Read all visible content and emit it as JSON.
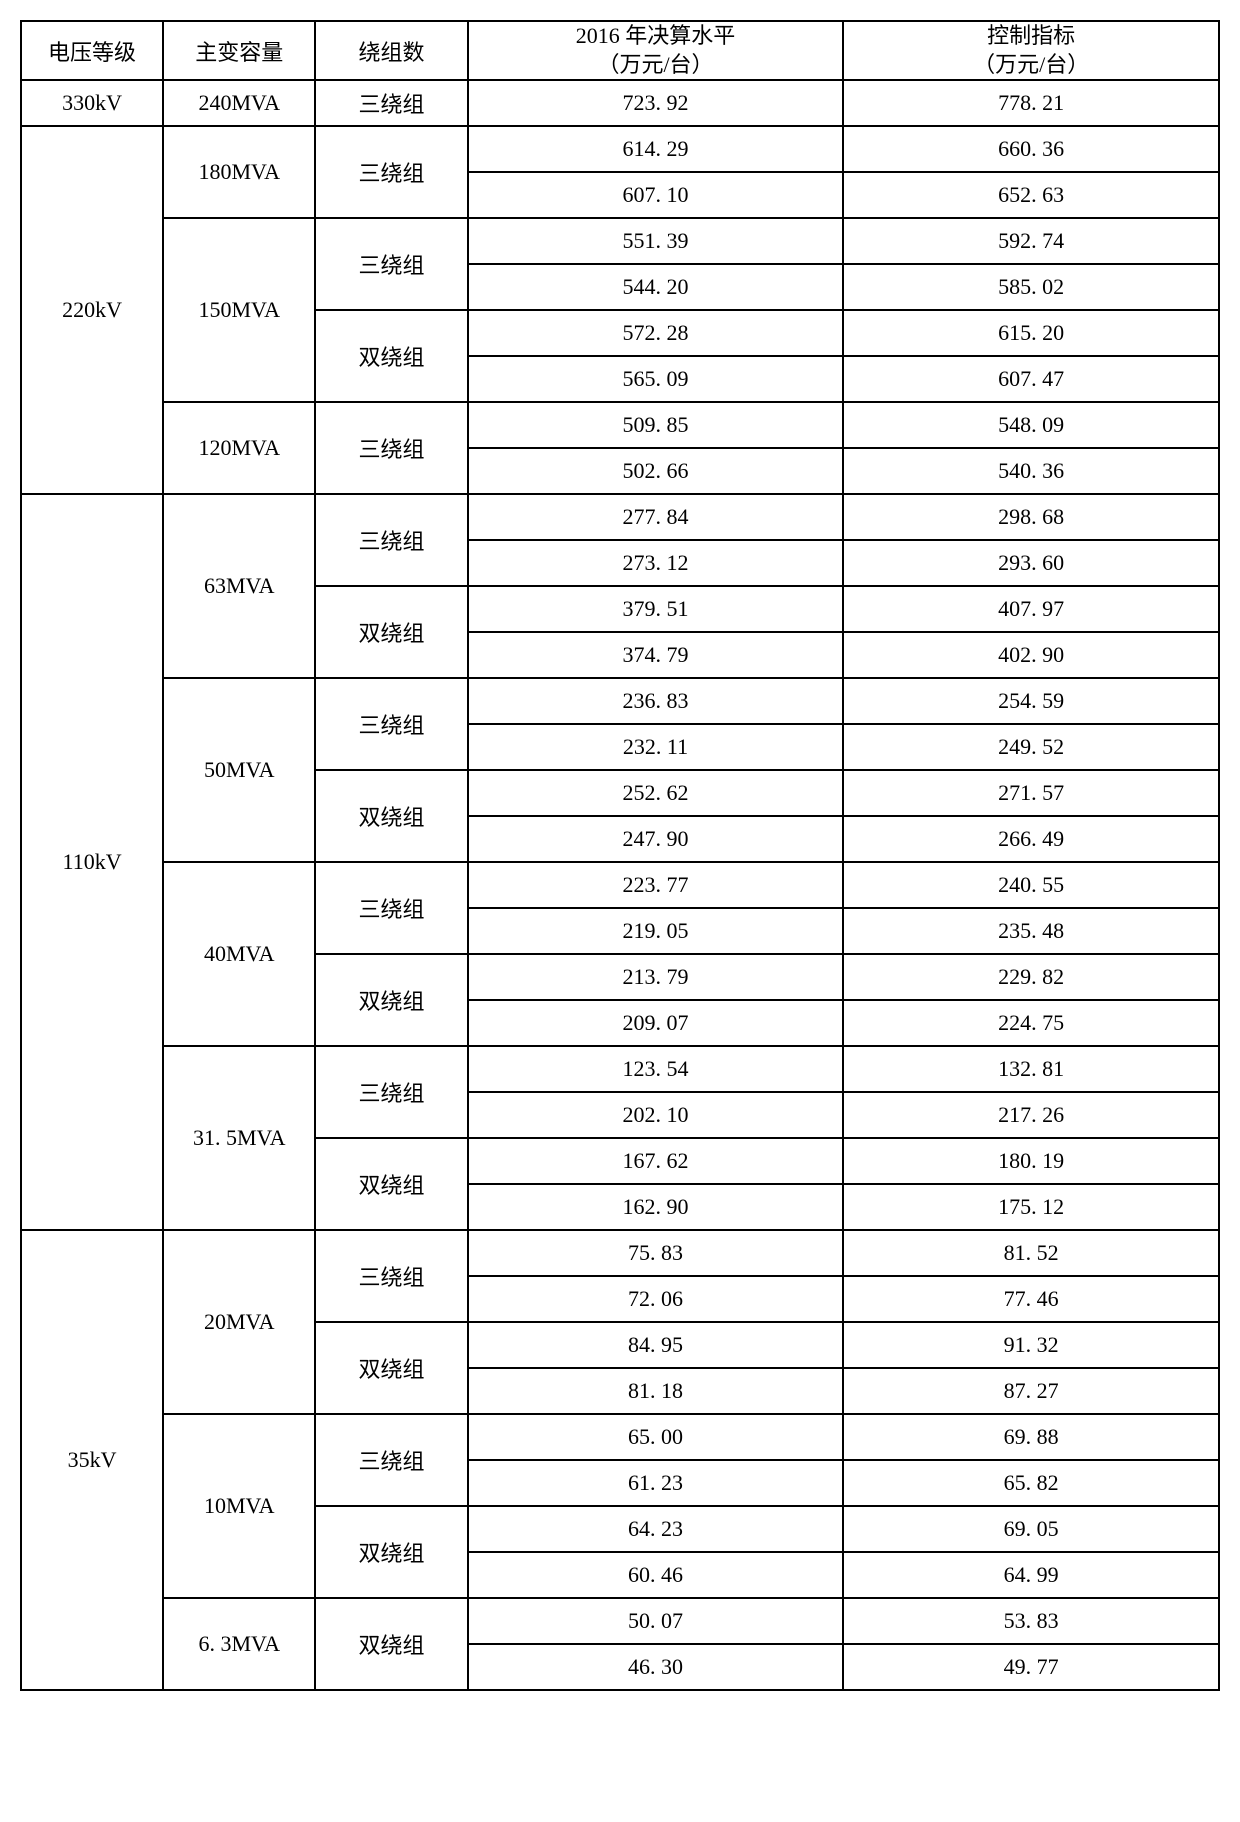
{
  "table": {
    "columns": [
      {
        "label": "电压等级"
      },
      {
        "label": "主变容量"
      },
      {
        "label": "绕组数"
      },
      {
        "line1": "2016 年决算水平",
        "line2": "（万元/台）"
      },
      {
        "line1": "控制指标",
        "line2": "（万元/台）"
      }
    ],
    "rows": [
      {
        "voltage": "330kV",
        "v_span": 1,
        "capacity": "240MVA",
        "c_span": 1,
        "winding": "三绕组",
        "w_span": 1,
        "val1": "723. 92",
        "val2": "778. 21"
      },
      {
        "voltage": "220kV",
        "v_span": 8,
        "capacity": "180MVA",
        "c_span": 2,
        "winding": "三绕组",
        "w_span": 2,
        "val1": "614. 29",
        "val2": "660. 36"
      },
      {
        "val1": "607. 10",
        "val2": "652. 63"
      },
      {
        "capacity": "150MVA",
        "c_span": 4,
        "winding": "三绕组",
        "w_span": 2,
        "val1": "551. 39",
        "val2": "592. 74"
      },
      {
        "val1": "544. 20",
        "val2": "585. 02"
      },
      {
        "winding": "双绕组",
        "w_span": 2,
        "val1": "572. 28",
        "val2": "615. 20"
      },
      {
        "val1": "565. 09",
        "val2": "607. 47"
      },
      {
        "capacity": "120MVA",
        "c_span": 2,
        "winding": "三绕组",
        "w_span": 2,
        "val1": "509. 85",
        "val2": "548. 09"
      },
      {
        "val1": "502. 66",
        "val2": "540. 36"
      },
      {
        "voltage": "110kV",
        "v_span": 16,
        "capacity": "63MVA",
        "c_span": 4,
        "winding": "三绕组",
        "w_span": 2,
        "val1": "277. 84",
        "val2": "298. 68"
      },
      {
        "val1": "273. 12",
        "val2": "293. 60"
      },
      {
        "winding": "双绕组",
        "w_span": 2,
        "val1": "379. 51",
        "val2": "407. 97"
      },
      {
        "val1": "374. 79",
        "val2": "402. 90"
      },
      {
        "capacity": "50MVA",
        "c_span": 4,
        "winding": "三绕组",
        "w_span": 2,
        "val1": "236. 83",
        "val2": "254. 59"
      },
      {
        "val1": "232. 11",
        "val2": "249. 52"
      },
      {
        "winding": "双绕组",
        "w_span": 2,
        "val1": "252. 62",
        "val2": "271. 57"
      },
      {
        "val1": "247. 90",
        "val2": "266. 49"
      },
      {
        "capacity": "40MVA",
        "c_span": 4,
        "winding": "三绕组",
        "w_span": 2,
        "val1": "223. 77",
        "val2": "240. 55"
      },
      {
        "val1": "219. 05",
        "val2": "235. 48"
      },
      {
        "winding": "双绕组",
        "w_span": 2,
        "val1": "213. 79",
        "val2": "229. 82"
      },
      {
        "val1": "209. 07",
        "val2": "224. 75"
      },
      {
        "capacity": "31. 5MVA",
        "c_span": 4,
        "winding": "三绕组",
        "w_span": 2,
        "val1": "123. 54",
        "val2": "132. 81"
      },
      {
        "val1": "202. 10",
        "val2": "217. 26"
      },
      {
        "winding": "双绕组",
        "w_span": 2,
        "val1": "167. 62",
        "val2": "180. 19"
      },
      {
        "val1": "162. 90",
        "val2": "175. 12"
      },
      {
        "voltage": "35kV",
        "v_span": 10,
        "capacity": "20MVA",
        "c_span": 4,
        "winding": "三绕组",
        "w_span": 2,
        "val1": "75. 83",
        "val2": "81. 52"
      },
      {
        "val1": "72. 06",
        "val2": "77. 46"
      },
      {
        "winding": "双绕组",
        "w_span": 2,
        "val1": "84. 95",
        "val2": "91. 32"
      },
      {
        "val1": "81. 18",
        "val2": "87. 27"
      },
      {
        "capacity": "10MVA",
        "c_span": 4,
        "winding": "三绕组",
        "w_span": 2,
        "val1": "65. 00",
        "val2": "69. 88"
      },
      {
        "val1": "61. 23",
        "val2": "65. 82"
      },
      {
        "winding": "双绕组",
        "w_span": 2,
        "val1": "64. 23",
        "val2": "69. 05"
      },
      {
        "val1": "60. 46",
        "val2": "64. 99"
      },
      {
        "capacity": "6. 3MVA",
        "c_span": 2,
        "winding": "双绕组",
        "w_span": 2,
        "val1": "50. 07",
        "val2": "53. 83"
      },
      {
        "val1": "46. 30",
        "val2": "49. 77"
      }
    ]
  }
}
